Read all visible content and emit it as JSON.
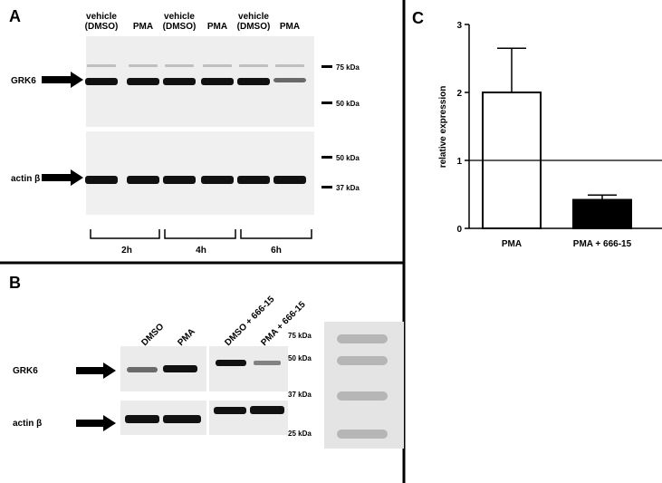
{
  "panel_a": {
    "label": "A",
    "lanes": [
      [
        "vehicle",
        "(DMSO)"
      ],
      [
        "PMA"
      ],
      [
        "vehicle",
        "(DMSO)"
      ],
      [
        "PMA"
      ],
      [
        "vehicle",
        "(DMSO)"
      ],
      [
        "PMA"
      ]
    ],
    "proteins": [
      "GRK6",
      "actin β"
    ],
    "markers": [
      "75 kDa",
      "50 kDa",
      "50 kDa",
      "37 kDa"
    ],
    "timepoints": [
      "2h",
      "4h",
      "6h"
    ]
  },
  "panel_b": {
    "label": "B",
    "lanes": [
      "DMSO",
      "PMA",
      "DMSO + 666-15",
      "PMA + 666-15"
    ],
    "proteins": [
      "GRK6",
      "actin β"
    ],
    "markers": [
      "75 kDa",
      "50 kDa",
      "37 kDa",
      "25 kDa"
    ]
  },
  "chart_data": {
    "type": "bar",
    "panel_label": "C",
    "y_label": "relative expression",
    "categories": [
      "PMA",
      "PMA + 666-15"
    ],
    "values": [
      2,
      0.42
    ],
    "errors": [
      0.65,
      0.07
    ],
    "colors": [
      "#ffffff",
      "#000000"
    ],
    "ylim": [
      0,
      3
    ],
    "yticks": [
      0,
      1,
      2,
      3
    ],
    "reference_line": 1
  }
}
